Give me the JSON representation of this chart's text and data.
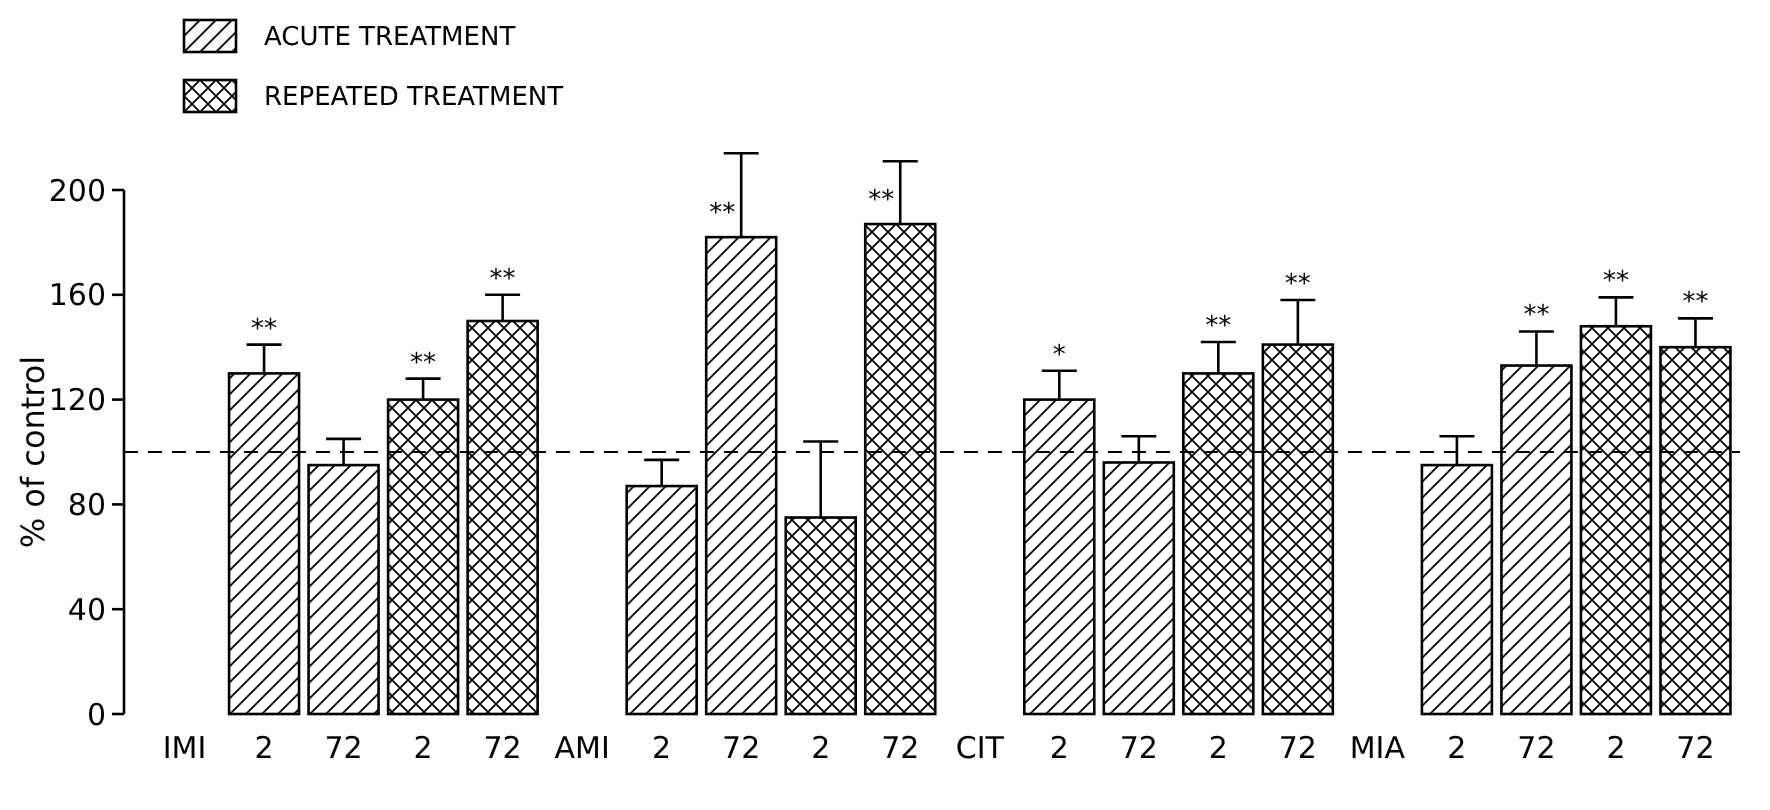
{
  "chart_data": {
    "type": "bar",
    "ylabel": "% of control",
    "categories": [
      "IMI",
      "2",
      "72",
      "2",
      "72",
      "AMI",
      "2",
      "72",
      "2",
      "72",
      "CIT",
      "2",
      "72",
      "2",
      "72",
      "MIA",
      "2",
      "72",
      "2",
      "72"
    ],
    "series": [
      {
        "name": "ACUTE TREATMENT",
        "color": "#000000",
        "values": [
          null,
          130,
          95,
          null,
          null,
          null,
          87,
          182,
          null,
          null,
          null,
          120,
          96,
          null,
          null,
          null,
          95,
          133,
          null,
          null
        ],
        "errors": [
          null,
          [
            130,
            141
          ],
          [
            95,
            105
          ],
          null,
          null,
          null,
          [
            87,
            97
          ],
          [
            182,
            214
          ],
          null,
          null,
          null,
          [
            120,
            131
          ],
          [
            96,
            106
          ],
          null,
          null,
          null,
          [
            95,
            106
          ],
          [
            133,
            146
          ],
          null,
          null
        ],
        "value_labels": [
          null,
          "**",
          null,
          null,
          null,
          null,
          null,
          "**",
          null,
          null,
          null,
          "*",
          null,
          null,
          null,
          null,
          null,
          "**",
          null,
          null
        ]
      },
      {
        "name": "REPEATED TREATMENT",
        "color": "#000000",
        "values": [
          null,
          null,
          null,
          120,
          150,
          null,
          null,
          null,
          75,
          187,
          null,
          null,
          null,
          130,
          141,
          null,
          null,
          null,
          148,
          140
        ],
        "errors": [
          null,
          null,
          null,
          [
            120,
            128
          ],
          [
            150,
            160
          ],
          null,
          null,
          null,
          [
            75,
            104
          ],
          [
            187,
            211
          ],
          null,
          null,
          null,
          [
            130,
            142
          ],
          [
            141,
            158
          ],
          null,
          null,
          null,
          [
            148,
            159
          ],
          [
            140,
            151
          ]
        ],
        "value_labels": [
          null,
          null,
          null,
          "**",
          "**",
          null,
          null,
          null,
          null,
          "**",
          null,
          null,
          null,
          "**",
          "**",
          null,
          null,
          null,
          "**",
          "**"
        ]
      }
    ],
    "ylim": [
      0,
      200
    ],
    "yticks": [
      0,
      40,
      80,
      120,
      160,
      200
    ],
    "grid": false,
    "legend": "top left",
    "ref_lines": [
      {
        "axis": "y",
        "value": 100,
        "line_style": "dashed"
      }
    ]
  }
}
